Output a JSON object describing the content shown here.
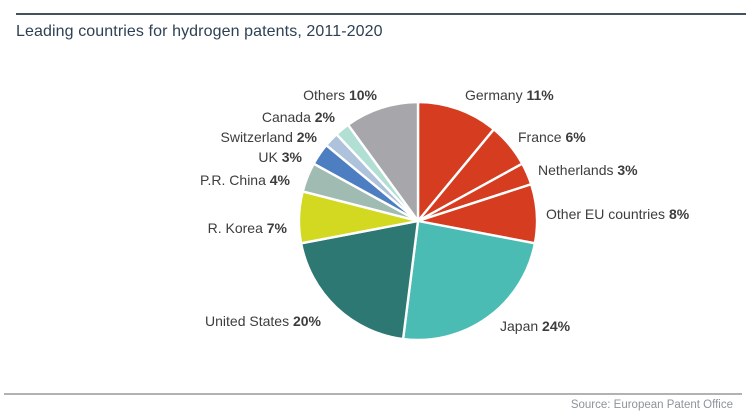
{
  "header": {
    "title": "Leading countries for hydrogen patents, 2011-2020"
  },
  "footer": {
    "source": "Source: European Patent Office"
  },
  "chart_data": {
    "type": "pie",
    "title": "Leading countries for hydrogen patents, 2011-2020",
    "unit": "%",
    "categories": [
      "Germany",
      "France",
      "Netherlands",
      "Other EU countries",
      "Japan",
      "United States",
      "R. Korea",
      "P.R. China",
      "UK",
      "Switzerland",
      "Canada",
      "Others"
    ],
    "values": [
      11,
      6,
      3,
      8,
      24,
      20,
      7,
      4,
      3,
      2,
      2,
      10
    ],
    "colors": [
      "#d63c20",
      "#d63c20",
      "#d63c20",
      "#d63c20",
      "#4bbcb4",
      "#2e7873",
      "#d3d821",
      "#a0bcb2",
      "#4d7ec1",
      "#aec2dc",
      "#b2dfd3",
      "#a7a6ab"
    ],
    "slice_order": "clockwise-from-top",
    "separator_color": "#ffffff",
    "legend_position": "labels-around-slices",
    "label_format": "{category} {value}%",
    "source": "Source: European Patent Office"
  },
  "style": {
    "top_rule_color": "#42525e",
    "bottom_rule_color": "#b2b2b2",
    "title_color": "#2e4154",
    "label_color": "#3d3d3d",
    "source_color": "#8d949a",
    "background": "#ffffff"
  }
}
